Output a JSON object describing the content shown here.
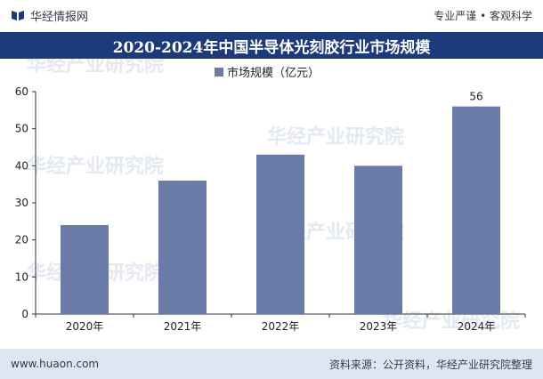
{
  "header": {
    "brand": "华经情报网",
    "slogan": "专业严谨 • 客观科学"
  },
  "title": "2020-2024年中国半导体光刻胶行业市场规模",
  "watermark": "华经产业研究院",
  "footer": {
    "url": "www.huaon.com",
    "source": "资料来源：公开资料，华经产业研究院整理"
  },
  "colors": {
    "bar": "#6b7ba8",
    "title_band": "#1d3b7a",
    "footer_band": "#dfe6f2"
  },
  "chart_data": {
    "type": "bar",
    "categories": [
      "2020年",
      "2021年",
      "2022年",
      "2023年",
      "2024年"
    ],
    "series": [
      {
        "name": "市场规模（亿元）",
        "values": [
          24,
          36,
          43,
          40,
          56
        ]
      }
    ],
    "data_labels": {
      "2024年": "56"
    },
    "ylim": [
      0,
      60
    ],
    "yticks": [
      0,
      10,
      20,
      30,
      40,
      50,
      60
    ],
    "legend_position": "top-center",
    "grid": false
  }
}
